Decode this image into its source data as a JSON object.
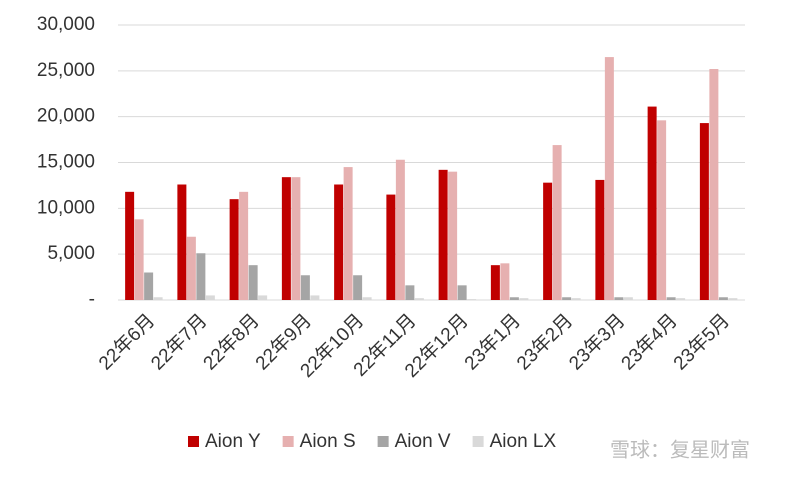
{
  "chart_data": {
    "type": "bar",
    "categories": [
      "22年6月",
      "22年7月",
      "22年8月",
      "22年9月",
      "22年10月",
      "22年11月",
      "22年12月",
      "23年1月",
      "23年2月",
      "23年3月",
      "23年4月",
      "23年5月"
    ],
    "series": [
      {
        "name": "Aion Y",
        "color": "#c00000",
        "values": [
          11800,
          12600,
          11000,
          13400,
          12600,
          11500,
          14200,
          3800,
          12800,
          13100,
          21100,
          19300
        ]
      },
      {
        "name": "Aion S",
        "color": "#e6b0b0",
        "values": [
          8800,
          6900,
          11800,
          13400,
          14500,
          15300,
          14000,
          4000,
          16900,
          26500,
          19600,
          25200
        ]
      },
      {
        "name": "Aion V",
        "color": "#a5a5a5",
        "values": [
          3000,
          5100,
          3800,
          2700,
          2700,
          1600,
          1600,
          300,
          300,
          300,
          300,
          300
        ]
      },
      {
        "name": "Aion LX",
        "color": "#d9d9d9",
        "values": [
          300,
          500,
          500,
          500,
          300,
          200,
          100,
          200,
          200,
          300,
          200,
          200
        ]
      }
    ],
    "ylim": [
      0,
      30000
    ],
    "yticks": [
      {
        "value": 0,
        "label": "-"
      },
      {
        "value": 5000,
        "label": "5,000"
      },
      {
        "value": 10000,
        "label": "10,000"
      },
      {
        "value": 15000,
        "label": "15,000"
      },
      {
        "value": 20000,
        "label": "20,000"
      },
      {
        "value": 25000,
        "label": "25,000"
      },
      {
        "value": 30000,
        "label": "30,000"
      }
    ],
    "grid": true,
    "legend": "bottom",
    "watermark": "雪球：复星财富"
  }
}
